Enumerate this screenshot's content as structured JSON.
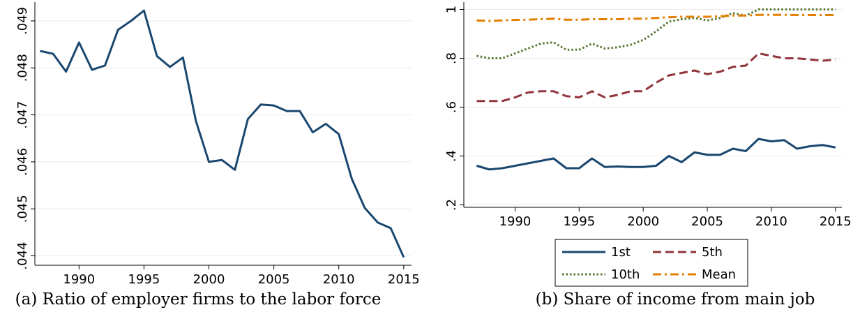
{
  "chart_data": [
    {
      "type": "line",
      "caption": "(a) Ratio of employer firms to the labor force",
      "x": [
        1987,
        1988,
        1989,
        1990,
        1991,
        1992,
        1993,
        1994,
        1995,
        1996,
        1997,
        1998,
        1999,
        2000,
        2001,
        2002,
        2003,
        2004,
        2005,
        2006,
        2007,
        2008,
        2009,
        2010,
        2011,
        2012,
        2013,
        2014,
        2015
      ],
      "values": [
        0.04836,
        0.0483,
        0.04792,
        0.04854,
        0.04796,
        0.04805,
        0.04881,
        0.049,
        0.04922,
        0.04825,
        0.04802,
        0.04822,
        0.04687,
        0.046,
        0.04604,
        0.04583,
        0.04691,
        0.04722,
        0.0472,
        0.04708,
        0.04708,
        0.04663,
        0.04681,
        0.04659,
        0.04564,
        0.04502,
        0.04471,
        0.04459,
        0.04397
      ],
      "color": "#1a476f",
      "xlim": [
        1986.6,
        2015.6
      ],
      "xticks": [
        1990,
        1995,
        2000,
        2005,
        2010,
        2015
      ],
      "ylim": [
        0.0438,
        0.0494
      ],
      "yticks": [
        {
          "value": 0.044,
          "label": ".044"
        },
        {
          "value": 0.045,
          "label": ".045"
        },
        {
          "value": 0.046,
          "label": ".046"
        },
        {
          "value": 0.047,
          "label": ".047"
        },
        {
          "value": 0.048,
          "label": ".048"
        },
        {
          "value": 0.049,
          "label": ".049"
        }
      ],
      "grid": true
    },
    {
      "type": "line",
      "caption": "(b) Share of income from main job",
      "x": [
        1987,
        1988,
        1989,
        1990,
        1991,
        1992,
        1993,
        1994,
        1995,
        1996,
        1997,
        1998,
        1999,
        2000,
        2001,
        2002,
        2003,
        2004,
        2005,
        2006,
        2007,
        2008,
        2009,
        2010,
        2011,
        2012,
        2013,
        2014,
        2015
      ],
      "series": [
        {
          "name": "1st",
          "color": "#1a476f",
          "dash": "solid",
          "values": [
            0.36,
            0.345,
            0.35,
            0.36,
            0.37,
            0.38,
            0.39,
            0.35,
            0.35,
            0.39,
            0.355,
            0.357,
            0.355,
            0.355,
            0.36,
            0.4,
            0.375,
            0.415,
            0.405,
            0.405,
            0.43,
            0.42,
            0.47,
            0.46,
            0.465,
            0.43,
            0.44,
            0.445,
            0.435
          ]
        },
        {
          "name": "5th",
          "color": "#90353b",
          "dash": "dashed",
          "values": [
            0.625,
            0.625,
            0.625,
            0.64,
            0.66,
            0.665,
            0.665,
            0.645,
            0.64,
            0.665,
            0.64,
            0.65,
            0.665,
            0.665,
            0.7,
            0.73,
            0.74,
            0.75,
            0.735,
            0.745,
            0.765,
            0.77,
            0.82,
            0.81,
            0.8,
            0.8,
            0.795,
            0.79,
            0.795
          ]
        },
        {
          "name": "10th",
          "color": "#55752f",
          "dash": "dotted",
          "values": [
            0.81,
            0.8,
            0.8,
            0.82,
            0.84,
            0.86,
            0.865,
            0.835,
            0.835,
            0.86,
            0.84,
            0.845,
            0.855,
            0.875,
            0.91,
            0.95,
            0.96,
            0.965,
            0.955,
            0.965,
            0.985,
            0.975,
            1,
            1,
            1,
            1,
            1,
            1,
            1
          ]
        },
        {
          "name": "Mean",
          "color": "#e37e00",
          "dash": "dashdot",
          "values": [
            0.955,
            0.953,
            0.955,
            0.957,
            0.958,
            0.96,
            0.962,
            0.958,
            0.958,
            0.96,
            0.96,
            0.96,
            0.962,
            0.962,
            0.965,
            0.968,
            0.97,
            0.97,
            0.97,
            0.972,
            0.975,
            0.975,
            0.978,
            0.978,
            0.978,
            0.977,
            0.977,
            0.977,
            0.977
          ]
        }
      ],
      "xlim": [
        1986,
        2015.5
      ],
      "xticks": [
        1990,
        1995,
        2000,
        2005,
        2010,
        2015
      ],
      "ylim": [
        0.19,
        1.03
      ],
      "yticks": [
        {
          "value": 0.2,
          "label": ".2"
        },
        {
          "value": 0.4,
          "label": ".4"
        },
        {
          "value": 0.6,
          "label": ".6"
        },
        {
          "value": 0.8,
          "label": ".8"
        },
        1
      ],
      "grid": true,
      "legend": "bottom"
    }
  ]
}
